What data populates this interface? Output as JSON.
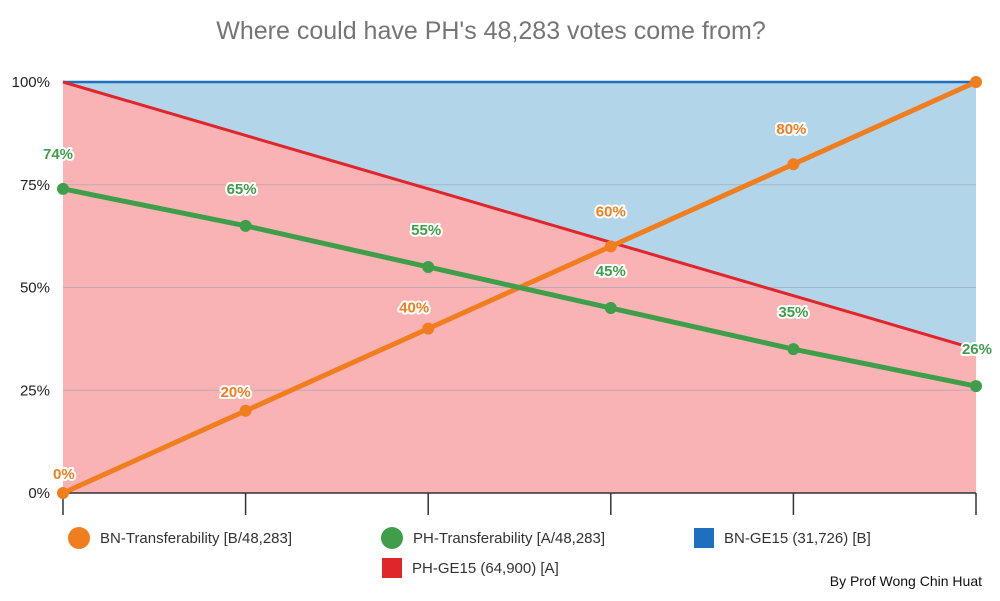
{
  "chart_data": {
    "type": "line",
    "title": "Where could have PH's 48,283 votes come from?",
    "x": [
      0,
      1,
      2,
      3,
      4,
      5
    ],
    "ylim": [
      0,
      1
    ],
    "yticks": [
      "0%",
      "25%",
      "50%",
      "75%",
      "100%"
    ],
    "ytick_values": [
      0,
      0.25,
      0.5,
      0.75,
      1
    ],
    "grid": true,
    "legend_position": "bottom",
    "series": [
      {
        "name": "BN-Transferability [B/48,283]",
        "color": "#f07d1e",
        "style": "line-markers",
        "values": [
          0,
          0.2,
          0.4,
          0.6,
          0.8,
          1.0
        ],
        "labels": [
          "0%",
          "20%",
          "40%",
          "60%",
          "80%",
          ""
        ]
      },
      {
        "name": "PH-Transferability [A/48,283]",
        "color": "#3f9e4a",
        "style": "line-markers",
        "values": [
          0.74,
          0.65,
          0.55,
          0.45,
          0.35,
          0.26
        ],
        "labels": [
          "74%",
          "65%",
          "55%",
          "45%",
          "35%",
          "26%"
        ]
      },
      {
        "name": "BN-GE15 (31,726) [B]",
        "color": "#1f6fbf",
        "fill": "#b3d5ea",
        "style": "area",
        "values": [
          1,
          1,
          1,
          1,
          1,
          1
        ]
      },
      {
        "name": "PH-GE15 (64,900) [A]",
        "color": "#e0252b",
        "fill": "#fab3b5",
        "style": "area",
        "values": [
          1.0,
          0.87,
          0.74,
          0.61,
          0.48,
          0.35
        ]
      }
    ]
  },
  "credit": "By Prof Wong Chin Huat"
}
